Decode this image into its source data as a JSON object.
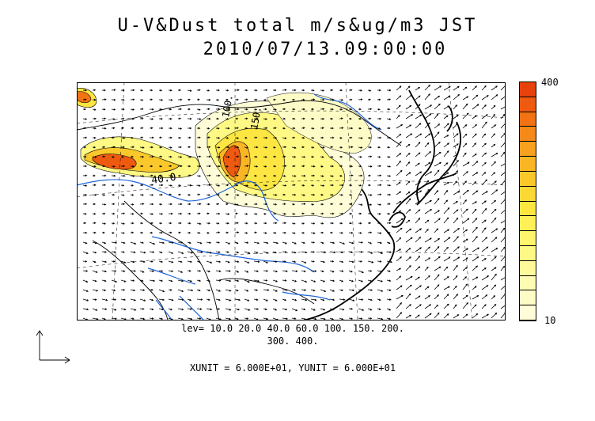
{
  "title": {
    "line1": "U-V&Dust total m/s&ug/m3 JST",
    "line2": "2010/07/13.09:00:00"
  },
  "colorbar": {
    "max_label": "400",
    "min_label": "10",
    "colors": [
      "#e8420c",
      "#ee5a10",
      "#f27214",
      "#f58a18",
      "#f7a11e",
      "#f9b524",
      "#fbc82c",
      "#fcd836",
      "#fde642",
      "#fef056",
      "#fef56c",
      "#fef884",
      "#fefa9c",
      "#fefbb2",
      "#fefcc6",
      "#fefdd8"
    ]
  },
  "contour_labels": [
    "40.0",
    "100.",
    "150."
  ],
  "legend": {
    "levels_line1": "lev= 10.0 20.0 40.0 60.0 100. 150. 200.",
    "levels_line2": "300. 400.",
    "units": "XUNIT = 6.000E+01, YUNIT = 6.000E+01"
  }
}
